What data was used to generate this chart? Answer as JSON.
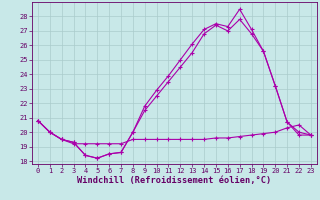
{
  "xlabel": "Windchill (Refroidissement éolien,°C)",
  "bg_color": "#c8e8e8",
  "grid_color": "#aacccc",
  "line_color": "#aa00aa",
  "line1_x": [
    0,
    1,
    2,
    3,
    4,
    5,
    6,
    7,
    8,
    9,
    10,
    11,
    12,
    13,
    14,
    15,
    16,
    17,
    18,
    19,
    20,
    21,
    22,
    23
  ],
  "line1_y": [
    20.8,
    20.0,
    19.5,
    19.3,
    18.4,
    18.2,
    18.5,
    18.6,
    20.0,
    21.8,
    22.9,
    23.9,
    25.0,
    26.1,
    27.1,
    27.5,
    27.3,
    28.5,
    27.1,
    25.6,
    23.2,
    20.7,
    20.0,
    19.8
  ],
  "line2_x": [
    0,
    1,
    2,
    3,
    4,
    5,
    6,
    7,
    8,
    9,
    10,
    11,
    12,
    13,
    14,
    15,
    16,
    17,
    18,
    19,
    20,
    21,
    22,
    23
  ],
  "line2_y": [
    20.8,
    20.0,
    19.5,
    19.3,
    18.4,
    18.2,
    18.5,
    18.6,
    20.0,
    21.5,
    22.5,
    23.5,
    24.5,
    25.5,
    26.8,
    27.4,
    27.0,
    27.8,
    26.8,
    25.6,
    23.2,
    20.7,
    19.8,
    19.8
  ],
  "line3_x": [
    0,
    1,
    2,
    3,
    4,
    5,
    6,
    7,
    8,
    9,
    10,
    11,
    12,
    13,
    14,
    15,
    16,
    17,
    18,
    19,
    20,
    21,
    22,
    23
  ],
  "line3_y": [
    20.8,
    20.0,
    19.5,
    19.2,
    19.2,
    19.2,
    19.2,
    19.2,
    19.5,
    19.5,
    19.5,
    19.5,
    19.5,
    19.5,
    19.5,
    19.6,
    19.6,
    19.7,
    19.8,
    19.9,
    20.0,
    20.3,
    20.5,
    19.8
  ],
  "xlim": [
    -0.5,
    23.5
  ],
  "ylim": [
    17.8,
    29.0
  ],
  "yticks": [
    18,
    19,
    20,
    21,
    22,
    23,
    24,
    25,
    26,
    27,
    28
  ],
  "xticks": [
    0,
    1,
    2,
    3,
    4,
    5,
    6,
    7,
    8,
    9,
    10,
    11,
    12,
    13,
    14,
    15,
    16,
    17,
    18,
    19,
    20,
    21,
    22,
    23
  ],
  "tick_fontsize": 5.0,
  "xlabel_fontsize": 6.2,
  "tick_color": "#660066",
  "spine_color": "#660066"
}
